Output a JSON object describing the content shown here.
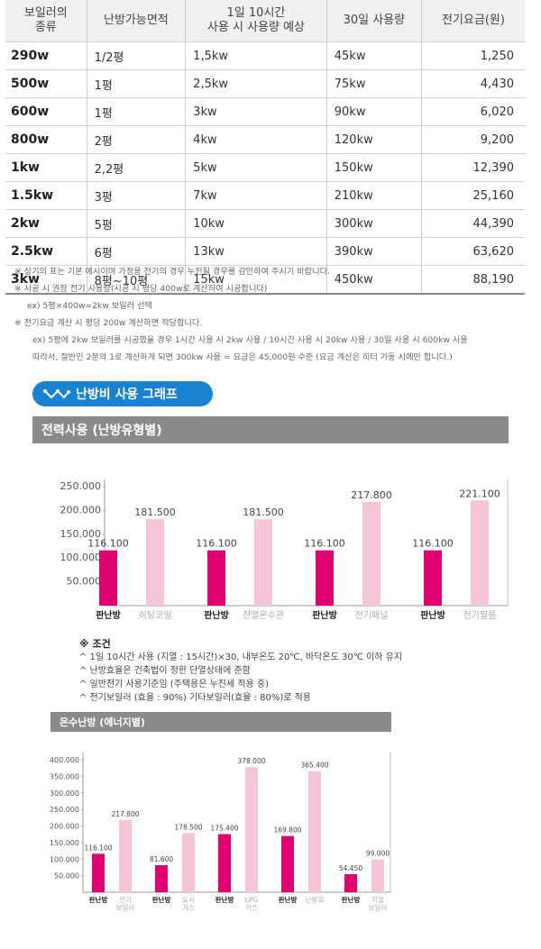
{
  "table": {
    "headers": [
      "보일러의\n종류",
      "난방가능면적",
      "1일 10시간\n사용 시 사용량 예상",
      "30일 사용량",
      "전기요금(원)"
    ],
    "rows": [
      [
        "290w",
        "1/2평",
        "1,5kw",
        "45kw",
        "1,250"
      ],
      [
        "500w",
        "1평",
        "2,5kw",
        "75kw",
        "4,430"
      ],
      [
        "600w",
        "1평",
        "3kw",
        "90kw",
        "6,020"
      ],
      [
        "800w",
        "2평",
        "4kw",
        "120kw",
        "9,200"
      ],
      [
        "1kw",
        "2,2평",
        "5kw",
        "150kw",
        "12,390"
      ],
      [
        "1.5kw",
        "3평",
        "7kw",
        "210kw",
        "25,160"
      ],
      [
        "2kw",
        "5평",
        "10kw",
        "300kw",
        "44,390"
      ],
      [
        "2.5kw",
        "6평",
        "13kw",
        "390kw",
        "63,620"
      ],
      [
        "3kw",
        "8평~10평",
        "15kw",
        "450kw",
        "88,190"
      ]
    ]
  },
  "notes": [
    "※ 상기의 표는 기본 예시이며 가정용 전기의 경우 누진될 경우를 감안하여 주시기 바랍니다.",
    "※ 시공 시 권장 전기 사용량(시공 시 평당 400w로 계산하여 시공합니다)",
    "ex) 5평×400w=2kw 보일러 선택",
    "※ 전기요금 계산 시 평당 200w 계산하면 적당합니다.",
    "ex) 5평에 2kw 보일러를 시공했을 경우 1시간 사용 시 2kw 사용 / 10시간 사용 시 20kw 사용 / 30일 사용 시 600kw 사용",
    "따라서, 절반인 2분의 1로 계산하게 되면 300kw 사용 = 요금은 45,000원 수준 (요금 계산은 히터 가동 시에만 합니다.)"
  ],
  "badge": {
    "label": "난방비 사용 그래프"
  },
  "conditions": {
    "header": "※ 조건",
    "lines": [
      "^ 1일 10시간 사용 (지열 : 15시간)×30, 내부온도 20℃, 바닥온도 30℃ 이하 유지",
      "^ 난방효율은 건축법이 정한 단열상태에 준함",
      "^ 일반전기 사용기준임 (주택용은 누진세 적용 중)",
      "^ 전기보일러 (효율 : 90%)   기타보일러(효율 : 80%)로 적용"
    ]
  },
  "colors": {
    "primary": "#e0006f",
    "secondary": "#f6c4d8",
    "badge": "#1a82d3",
    "header_bar": "#8a8a8a"
  },
  "chart_data": [
    {
      "type": "bar",
      "title": "전력사용 (난방유형별)",
      "ylim": [
        0,
        250000
      ],
      "yticks": [
        "250.000",
        "200.000",
        "150.000",
        "100.000",
        "50.000"
      ],
      "groups": [
        {
          "bars": [
            {
              "label": "판난방",
              "value": 116100,
              "text": "116.100",
              "kind": "primary"
            },
            {
              "label": "히팅코일",
              "value": 181500,
              "text": "181.500",
              "kind": "secondary"
            }
          ]
        },
        {
          "bars": [
            {
              "label": "판난방",
              "value": 116100,
              "text": "116.100",
              "kind": "primary"
            },
            {
              "label": "전열온수관",
              "value": 181500,
              "text": "181.500",
              "kind": "secondary"
            }
          ]
        },
        {
          "bars": [
            {
              "label": "판난방",
              "value": 116100,
              "text": "116.100",
              "kind": "primary"
            },
            {
              "label": "전기패널",
              "value": 217800,
              "text": "217.800",
              "kind": "secondary"
            }
          ]
        },
        {
          "bars": [
            {
              "label": "판난방",
              "value": 116100,
              "text": "116.100",
              "kind": "primary"
            },
            {
              "label": "전기필름",
              "value": 221100,
              "text": "221.100",
              "kind": "secondary"
            }
          ]
        }
      ]
    },
    {
      "type": "bar",
      "title": "온수난방 (에너지별)",
      "ylim": [
        0,
        400000
      ],
      "yticks": [
        "400.000",
        "350.000",
        "300.000",
        "250.000",
        "200.000",
        "150.000",
        "100.000",
        "50.000"
      ],
      "groups": [
        {
          "bars": [
            {
              "label": "판난방",
              "value": 116100,
              "text": "116.100",
              "kind": "primary"
            },
            {
              "label": "전기\n보일러",
              "value": 217800,
              "text": "217.800",
              "kind": "secondary"
            }
          ]
        },
        {
          "bars": [
            {
              "label": "판난방",
              "value": 81600,
              "text": "81.600",
              "kind": "primary"
            },
            {
              "label": "도시\n가스",
              "value": 178500,
              "text": "178.500",
              "kind": "secondary"
            }
          ]
        },
        {
          "bars": [
            {
              "label": "판난방",
              "value": 175400,
              "text": "175.400",
              "kind": "primary"
            },
            {
              "label": "LPG\n가스",
              "value": 378000,
              "text": "378.000",
              "kind": "secondary"
            }
          ]
        },
        {
          "bars": [
            {
              "label": "판난방",
              "value": 169800,
              "text": "169.800",
              "kind": "primary"
            },
            {
              "label": "난방유",
              "value": 365400,
              "text": "365.400",
              "kind": "secondary"
            }
          ]
        },
        {
          "bars": [
            {
              "label": "판난방",
              "value": 54450,
              "text": "54.450",
              "kind": "primary"
            },
            {
              "label": "지열\n보일러",
              "value": 99000,
              "text": "99.000",
              "kind": "secondary"
            }
          ]
        }
      ]
    }
  ]
}
